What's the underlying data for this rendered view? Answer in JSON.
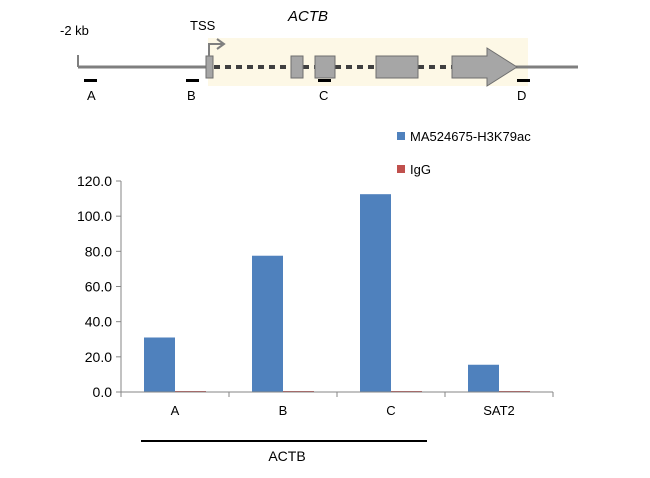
{
  "diagram": {
    "upstream_label": "-2 kb",
    "tss_label": "TSS",
    "gene_name": "ACTB",
    "primer_labels": [
      "A",
      "B",
      "C",
      "D"
    ],
    "colors": {
      "line": "#7f7f7f",
      "exon_fill": "#a6a6a6",
      "exon_stroke": "#6e6e6e",
      "highlight": "#fdf8e6",
      "primer": "#000000"
    }
  },
  "chart_data": {
    "type": "bar",
    "categories": [
      "A",
      "B",
      "C",
      "SAT2"
    ],
    "series": [
      {
        "name": "MA524675-H3K79ac",
        "color": "#4f81bd",
        "values": [
          31.0,
          77.5,
          112.5,
          15.5
        ]
      },
      {
        "name": "IgG",
        "color": "#c0504d",
        "values": [
          0.5,
          0.5,
          0.5,
          0.5
        ]
      }
    ],
    "ylim": [
      0,
      120
    ],
    "yticks": [
      0,
      20,
      40,
      60,
      80,
      100,
      120
    ],
    "tick_format": "0.0",
    "legend_position": "top-right",
    "group_label": "ACTB",
    "group_span_categories": [
      "A",
      "B",
      "C"
    ],
    "grid": false
  }
}
